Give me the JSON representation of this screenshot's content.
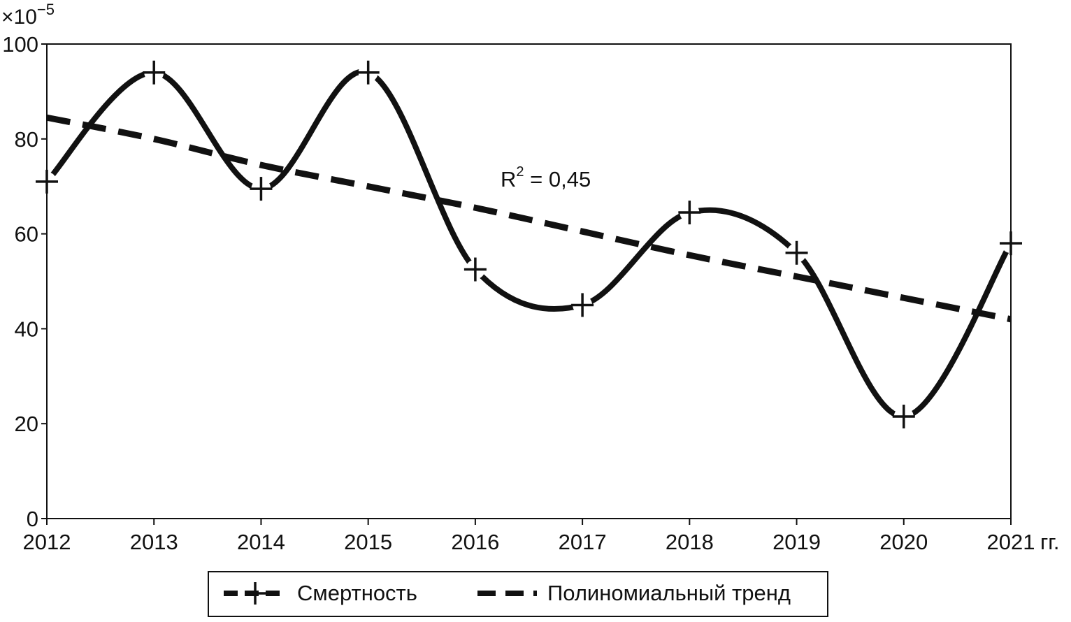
{
  "chart_data": {
    "type": "line",
    "y_multiplier_label": "×10",
    "y_multiplier_exponent": "−5",
    "x_unit_suffix": "гг.",
    "categories": [
      "2012",
      "2013",
      "2014",
      "2015",
      "2016",
      "2017",
      "2018",
      "2019",
      "2020",
      "2021"
    ],
    "x": [
      2012,
      2013,
      2014,
      2015,
      2016,
      2017,
      2018,
      2019,
      2020,
      2021
    ],
    "ylim": [
      0,
      100
    ],
    "y_ticks": [
      0,
      20,
      40,
      60,
      80,
      100
    ],
    "grid": false,
    "legend_position": "bottom-center",
    "series": [
      {
        "name": "Смертность",
        "style": "solid-with-plus-markers",
        "values": [
          71,
          94,
          69.5,
          94,
          52.5,
          45,
          64.5,
          56,
          21.5,
          58
        ]
      },
      {
        "name": "Полиномиальный тренд",
        "style": "dashed",
        "values": [
          84.5,
          80,
          74.5,
          70,
          65.5,
          60.5,
          55.5,
          51,
          46.5,
          42
        ]
      }
    ],
    "annotation": {
      "base": "R",
      "sup": "2",
      "rest": " = 0,45"
    }
  },
  "colors": {
    "line": "#111111",
    "background": "#ffffff"
  }
}
